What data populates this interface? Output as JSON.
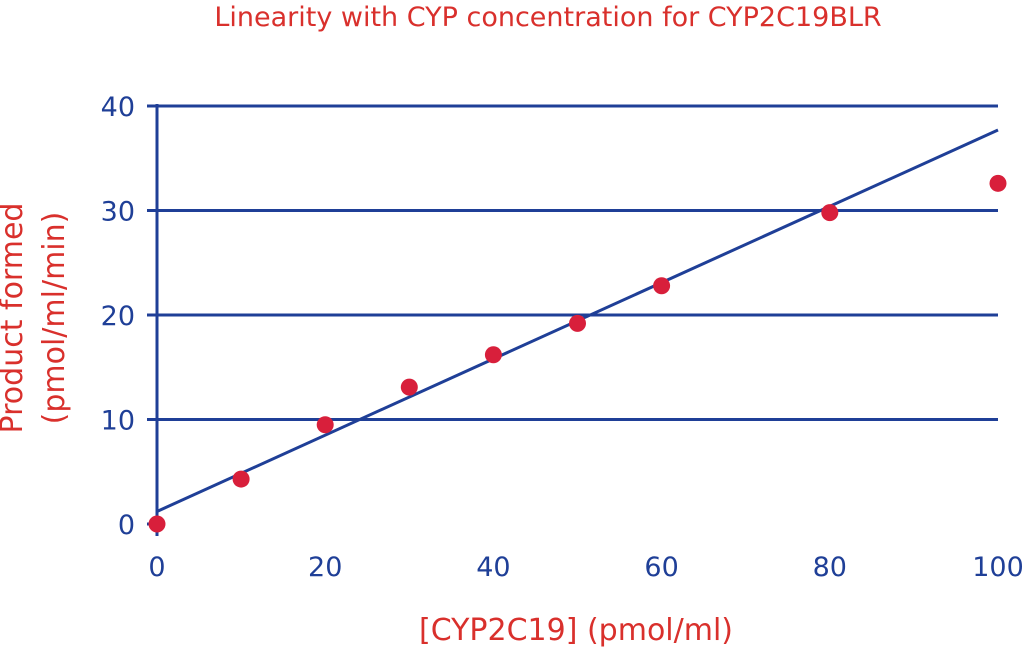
{
  "chart_data": {
    "type": "scatter",
    "title": "Linearity with CYP concentration for CYP2C19BLR",
    "xlabel": "[CYP2C19] (pmol/ml)",
    "ylabel_lines": [
      "Product formed",
      "(pmol/ml/min)"
    ],
    "xlim": [
      0,
      100
    ],
    "ylim": [
      0,
      40
    ],
    "x_ticks": [
      0,
      20,
      40,
      60,
      80,
      100
    ],
    "y_ticks": [
      0,
      10,
      20,
      30,
      40
    ],
    "grid": "horizontal",
    "series": [
      {
        "points": [
          {
            "x": 0,
            "y": 0
          },
          {
            "x": 10,
            "y": 4.3
          },
          {
            "x": 20,
            "y": 9.5
          },
          {
            "x": 30,
            "y": 13.1
          },
          {
            "x": 40,
            "y": 16.2
          },
          {
            "x": 50,
            "y": 19.2
          },
          {
            "x": 60,
            "y": 22.8
          },
          {
            "x": 80,
            "y": 29.8
          },
          {
            "x": 100,
            "y": 32.6
          }
        ]
      }
    ],
    "trendline": {
      "x0": 0,
      "y0": 1.2,
      "x1": 100,
      "y1": 37.7
    },
    "colors": {
      "text": "#d9302c",
      "axis": "#1f3f97",
      "marker": "#d81f3b",
      "line": "#1f3f97"
    }
  }
}
